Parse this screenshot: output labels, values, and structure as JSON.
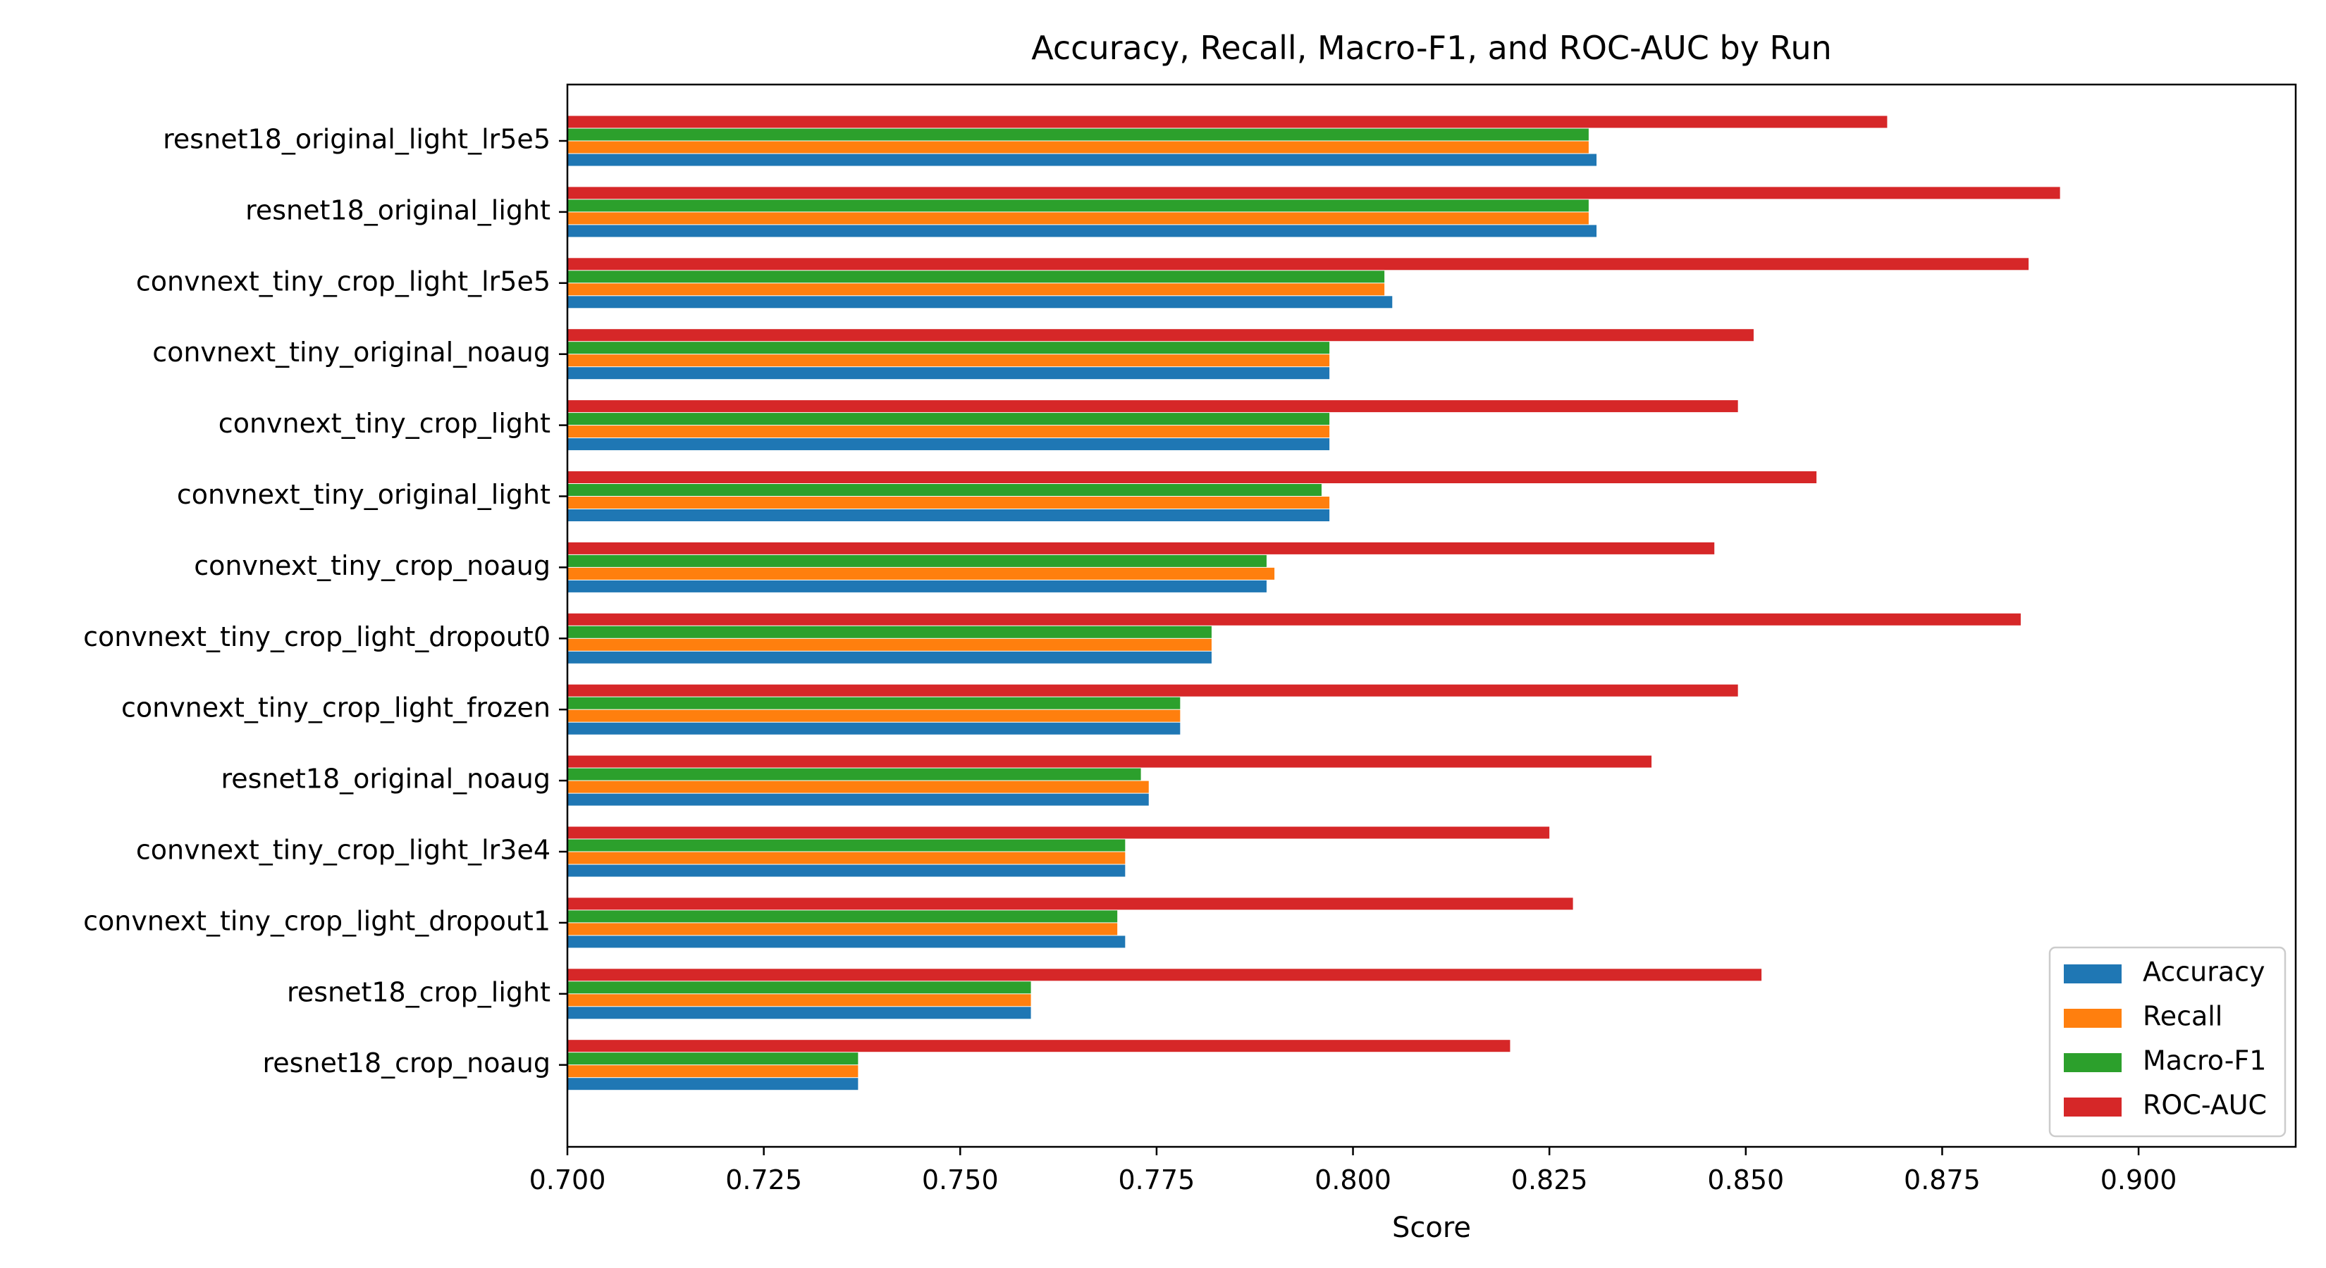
{
  "chart_data": {
    "type": "bar",
    "orientation": "horizontal",
    "title": "Accuracy, Recall, Macro-F1, and ROC-AUC by Run",
    "xlabel": "Score",
    "ylabel": "",
    "xlim": [
      0.7,
      0.92
    ],
    "xticks": [
      "0.700",
      "0.725",
      "0.750",
      "0.775",
      "0.800",
      "0.825",
      "0.850",
      "0.875",
      "0.900"
    ],
    "legend_position": "lower-right",
    "grid": false,
    "categories": [
      "resnet18_original_light_lr5e5",
      "resnet18_original_light",
      "convnext_tiny_crop_light_lr5e5",
      "convnext_tiny_original_noaug",
      "convnext_tiny_crop_light",
      "convnext_tiny_original_light",
      "convnext_tiny_crop_noaug",
      "convnext_tiny_crop_light_dropout0",
      "convnext_tiny_crop_light_frozen",
      "resnet18_original_noaug",
      "convnext_tiny_crop_light_lr3e4",
      "convnext_tiny_crop_light_dropout1",
      "resnet18_crop_light",
      "resnet18_crop_noaug"
    ],
    "series": [
      {
        "name": "Accuracy",
        "color": "#1f77b4",
        "values": [
          0.831,
          0.831,
          0.805,
          0.797,
          0.797,
          0.797,
          0.789,
          0.782,
          0.778,
          0.774,
          0.771,
          0.771,
          0.759,
          0.737
        ]
      },
      {
        "name": "Recall",
        "color": "#ff7f0e",
        "values": [
          0.83,
          0.83,
          0.804,
          0.797,
          0.797,
          0.797,
          0.79,
          0.782,
          0.778,
          0.774,
          0.771,
          0.77,
          0.759,
          0.737
        ]
      },
      {
        "name": "Macro-F1",
        "color": "#2ca02c",
        "values": [
          0.83,
          0.83,
          0.804,
          0.797,
          0.797,
          0.796,
          0.789,
          0.782,
          0.778,
          0.773,
          0.771,
          0.77,
          0.759,
          0.737
        ]
      },
      {
        "name": "ROC-AUC",
        "color": "#d62728",
        "values": [
          0.868,
          0.89,
          0.886,
          0.851,
          0.849,
          0.859,
          0.846,
          0.885,
          0.849,
          0.838,
          0.825,
          0.828,
          0.852,
          0.82
        ]
      }
    ]
  }
}
